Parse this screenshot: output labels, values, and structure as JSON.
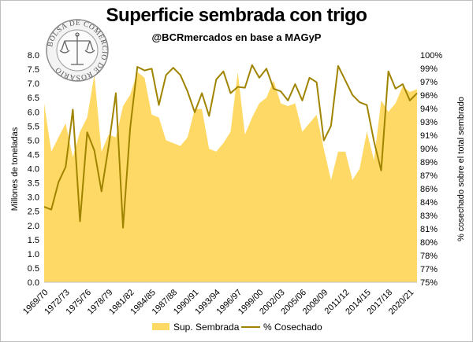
{
  "chart_data": {
    "type": "area",
    "title": "Superficie sembrada con trigo",
    "subtitle": "@BCRmercados en base a MAGyP",
    "ylabel": "Millones de toneladas",
    "y2label": "% cosechado sobre el total sembrado",
    "ylim": [
      0,
      8
    ],
    "y2lim": [
      75,
      100
    ],
    "y_ticks": [
      "0.0",
      "0.5",
      "1.0",
      "1.5",
      "2.0",
      "2.5",
      "3.0",
      "3.5",
      "4.0",
      "4.5",
      "5.0",
      "5.5",
      "6.0",
      "6.5",
      "7.0",
      "7.5",
      "8.0"
    ],
    "y2_ticks": [
      "75%",
      "77%",
      "78%",
      "80%",
      "81%",
      "83%",
      "84%",
      "86%",
      "87%",
      "89%",
      "90%",
      "91%",
      "93%",
      "94%",
      "96%",
      "97%",
      "99%",
      "100%"
    ],
    "x_tick_labels": [
      "1969/70",
      "1972/73",
      "1975/76",
      "1978/79",
      "1981/82",
      "1984/85",
      "1987/88",
      "1990/91",
      "1993/94",
      "1996/97",
      "1999/00",
      "2002/03",
      "2005/06",
      "2008/09",
      "2011/12",
      "2014/15",
      "2017/18",
      "2020/21"
    ],
    "legend_position": "bottom",
    "grid": false,
    "categories": [
      "1969/70",
      "1970/71",
      "1971/72",
      "1972/73",
      "1973/74",
      "1974/75",
      "1975/76",
      "1976/77",
      "1977/78",
      "1978/79",
      "1979/80",
      "1980/81",
      "1981/82",
      "1982/83",
      "1983/84",
      "1984/85",
      "1985/86",
      "1986/87",
      "1987/88",
      "1988/89",
      "1989/90",
      "1990/91",
      "1991/92",
      "1992/93",
      "1993/94",
      "1994/95",
      "1995/96",
      "1996/97",
      "1997/98",
      "1998/99",
      "1999/00",
      "2000/01",
      "2001/02",
      "2002/03",
      "2003/04",
      "2004/05",
      "2005/06",
      "2006/07",
      "2007/08",
      "2008/09",
      "2009/10",
      "2010/11",
      "2011/12",
      "2012/13",
      "2013/14",
      "2014/15",
      "2015/16",
      "2016/17",
      "2017/18",
      "2018/19",
      "2019/20",
      "2020/21",
      "2021/22"
    ],
    "series": [
      {
        "name": "Sup. Sembrada",
        "axis": "left",
        "color": "#FFD966",
        "values": [
          6.3,
          4.6,
          5.1,
          5.6,
          4.4,
          5.3,
          5.8,
          7.3,
          4.6,
          5.2,
          5.1,
          6.2,
          6.6,
          7.4,
          7.2,
          5.9,
          5.8,
          5.0,
          4.9,
          4.8,
          5.1,
          6.1,
          6.1,
          4.7,
          4.6,
          4.9,
          5.3,
          7.4,
          5.2,
          5.8,
          6.3,
          6.5,
          7.1,
          6.3,
          6.2,
          6.3,
          5.3,
          5.6,
          5.9,
          4.7,
          3.6,
          4.6,
          4.6,
          3.6,
          4.0,
          5.3,
          4.3,
          6.4,
          6.0,
          6.3,
          6.9,
          6.7,
          6.8
        ]
      },
      {
        "name": "% Cosechado",
        "axis": "right",
        "color": "#A08400",
        "values": [
          83.3,
          83.0,
          86.0,
          87.7,
          94.0,
          81.7,
          91.5,
          89.5,
          85.0,
          90.0,
          95.8,
          81.0,
          92.0,
          98.7,
          98.3,
          98.5,
          94.5,
          97.8,
          98.6,
          97.8,
          96.0,
          93.7,
          95.8,
          93.3,
          97.3,
          98.2,
          95.8,
          96.5,
          96.4,
          98.9,
          97.5,
          98.5,
          96.3,
          96.0,
          95.0,
          96.8,
          95.0,
          97.5,
          97.0,
          90.6,
          92.2,
          98.8,
          97.2,
          95.6,
          94.8,
          94.5,
          90.5,
          87.3,
          98.2,
          96.3,
          96.8,
          95.0,
          95.8
        ]
      }
    ]
  },
  "logo": {
    "text": "BOLSA DE COMERCIO DE ROSARIO",
    "icon": "scales-of-justice-icon"
  }
}
